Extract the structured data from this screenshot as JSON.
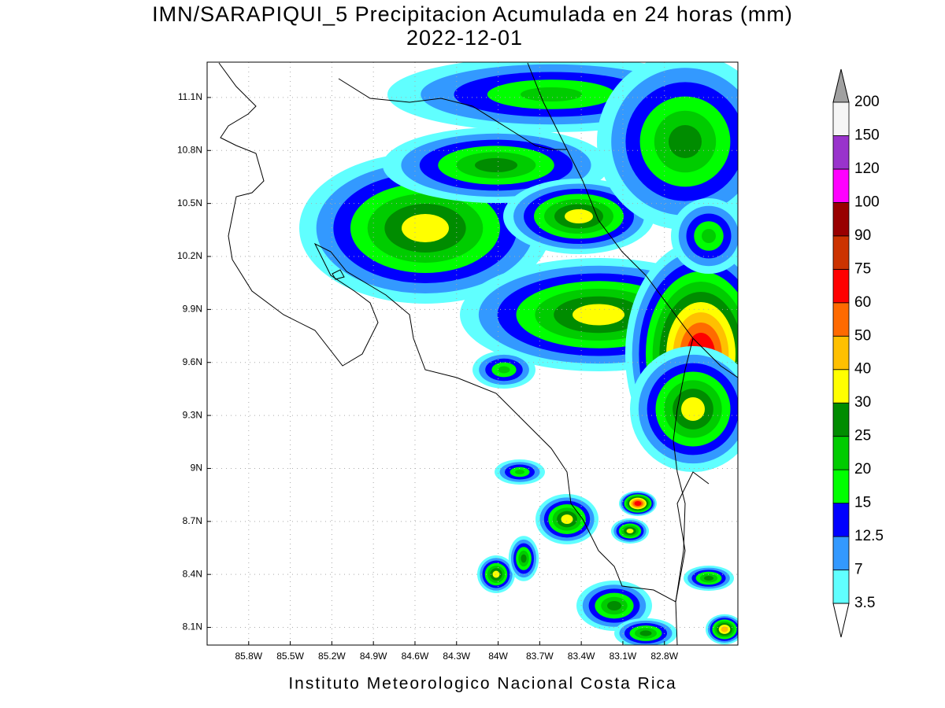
{
  "title": "IMN/SARAPIQUI_5 Precipitacion Acumulada en 24 horas (mm)",
  "subtitle": "2022-12-01",
  "footer": "Instituto Meteorologico Nacional Costa Rica",
  "map": {
    "lon_range": [
      -86.1,
      -82.27
    ],
    "lat_range": [
      8.0,
      11.3
    ],
    "lon_ticks": [
      {
        "value": -85.8,
        "label": "85.8W"
      },
      {
        "value": -85.5,
        "label": "85.5W"
      },
      {
        "value": -85.2,
        "label": "85.2W"
      },
      {
        "value": -84.9,
        "label": "84.9W"
      },
      {
        "value": -84.6,
        "label": "84.6W"
      },
      {
        "value": -84.3,
        "label": "84.3W"
      },
      {
        "value": -84,
        "label": "84W"
      },
      {
        "value": -83.7,
        "label": "83.7W"
      },
      {
        "value": -83.4,
        "label": "83.4W"
      },
      {
        "value": -83.1,
        "label": "83.1W"
      },
      {
        "value": -82.8,
        "label": "82.8W"
      }
    ],
    "lat_ticks": [
      {
        "value": 11.1,
        "label": "11.1N"
      },
      {
        "value": 10.8,
        "label": "10.8N"
      },
      {
        "value": 10.5,
        "label": "10.5N"
      },
      {
        "value": 10.2,
        "label": "10.2N"
      },
      {
        "value": 9.9,
        "label": "9.9N"
      },
      {
        "value": 9.6,
        "label": "9.6N"
      },
      {
        "value": 9.3,
        "label": "9.3N"
      },
      {
        "value": 9,
        "label": "9N"
      },
      {
        "value": 8.7,
        "label": "8.7N"
      },
      {
        "value": 8.4,
        "label": "8.4N"
      },
      {
        "value": 8.1,
        "label": "8.1N"
      }
    ]
  },
  "colorbar": {
    "levels": [
      3.5,
      7,
      12.5,
      15,
      20,
      25,
      30,
      40,
      50,
      60,
      75,
      90,
      100,
      120,
      150,
      200
    ],
    "under_color": "#ffffff",
    "colors": [
      "#60ffff",
      "#3399ff",
      "#0000ff",
      "#00ff00",
      "#00cc00",
      "#008c00",
      "#ffff00",
      "#ffc000",
      "#ff6a00",
      "#ff0000",
      "#cc3300",
      "#990000",
      "#ff00ff",
      "#9933cc",
      "#f5f5f5"
    ],
    "over_color": "#a0a0a0"
  }
}
